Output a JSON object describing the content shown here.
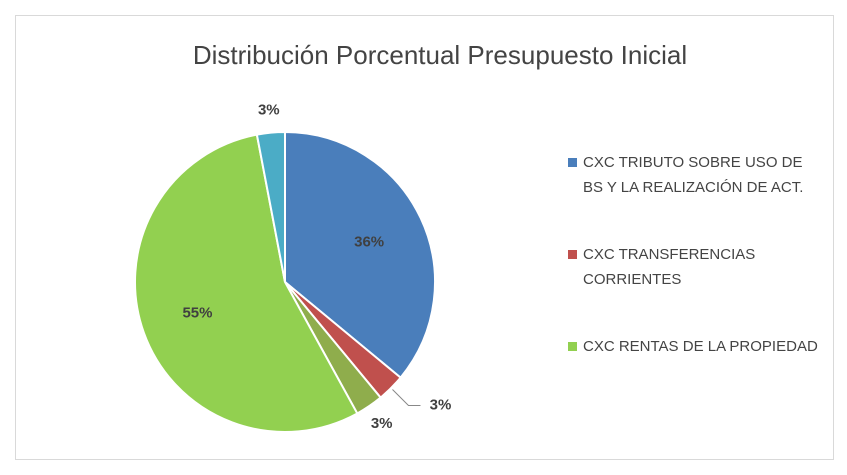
{
  "chart_data": {
    "type": "pie",
    "title": "Distribución Porcentual Presupuesto Inicial",
    "categories": [
      "CXC TRIBUTO SOBRE USO DE BS Y LA REALIZACIÓN DE ACT.",
      "CXC TRANSFERENCIAS CORRIENTES",
      null,
      "CXC RENTAS DE LA PROPIEDAD",
      null
    ],
    "values": [
      36,
      3,
      3,
      55,
      3
    ],
    "value_labels": [
      "36%",
      "3%",
      "3%",
      "55%",
      "3%"
    ],
    "colors": [
      "#4a7ebb",
      "#c0504d",
      "#8fad4c",
      "#92d050",
      "#4bacc6"
    ],
    "legend": "right"
  }
}
